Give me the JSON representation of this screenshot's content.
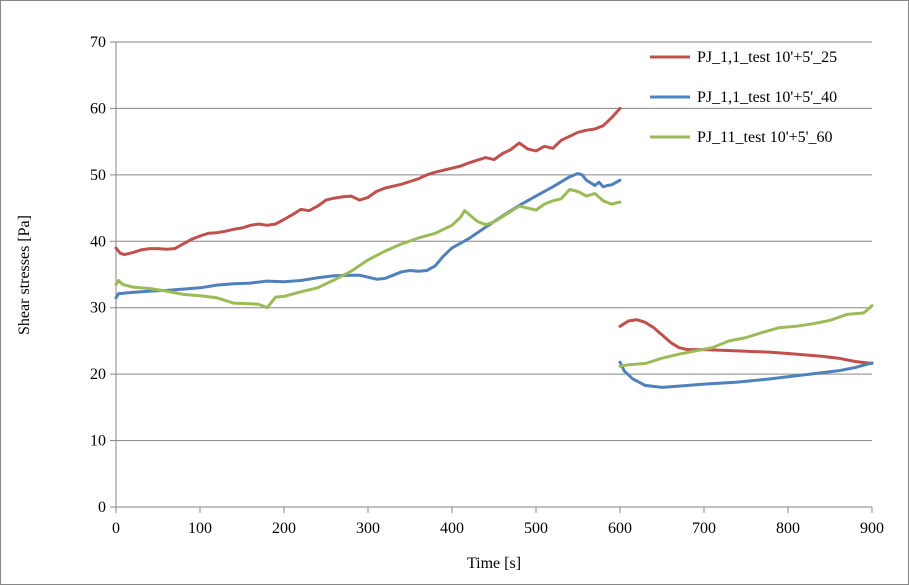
{
  "chart_data": {
    "type": "line",
    "title": "",
    "xlabel": "Time [s]",
    "ylabel": "Shear stresses [Pa]",
    "xlim": [
      0,
      900
    ],
    "ylim": [
      0,
      70
    ],
    "x_ticks": [
      0,
      100,
      200,
      300,
      400,
      500,
      600,
      700,
      800,
      900
    ],
    "y_ticks": [
      0,
      10,
      20,
      30,
      40,
      50,
      60,
      70
    ],
    "grid": "horizontal",
    "legend_position": "top-right",
    "series": [
      {
        "name": "PJ_1,1_test 10'+5'_25",
        "color": "#C0504D",
        "segments": [
          [
            [
              0,
              39.0
            ],
            [
              5,
              38.2
            ],
            [
              10,
              38.0
            ],
            [
              20,
              38.3
            ],
            [
              30,
              38.7
            ],
            [
              40,
              38.9
            ],
            [
              50,
              38.9
            ],
            [
              60,
              38.8
            ],
            [
              70,
              38.9
            ],
            [
              80,
              39.6
            ],
            [
              90,
              40.3
            ],
            [
              100,
              40.8
            ],
            [
              110,
              41.2
            ],
            [
              120,
              41.3
            ],
            [
              130,
              41.5
            ],
            [
              140,
              41.8
            ],
            [
              150,
              42.0
            ],
            [
              160,
              42.4
            ],
            [
              170,
              42.6
            ],
            [
              180,
              42.4
            ],
            [
              190,
              42.6
            ],
            [
              200,
              43.3
            ],
            [
              210,
              44.0
            ],
            [
              220,
              44.8
            ],
            [
              230,
              44.6
            ],
            [
              240,
              45.3
            ],
            [
              250,
              46.2
            ],
            [
              260,
              46.5
            ],
            [
              270,
              46.7
            ],
            [
              280,
              46.8
            ],
            [
              290,
              46.2
            ],
            [
              300,
              46.6
            ],
            [
              310,
              47.5
            ],
            [
              320,
              48.0
            ],
            [
              330,
              48.3
            ],
            [
              340,
              48.6
            ],
            [
              350,
              49.0
            ],
            [
              360,
              49.4
            ],
            [
              370,
              50.0
            ],
            [
              380,
              50.4
            ],
            [
              390,
              50.7
            ],
            [
              400,
              51.0
            ],
            [
              410,
              51.3
            ],
            [
              420,
              51.8
            ],
            [
              430,
              52.2
            ],
            [
              440,
              52.6
            ],
            [
              450,
              52.3
            ],
            [
              460,
              53.2
            ],
            [
              470,
              53.8
            ],
            [
              480,
              54.8
            ],
            [
              490,
              53.9
            ],
            [
              500,
              53.6
            ],
            [
              510,
              54.3
            ],
            [
              520,
              54.0
            ],
            [
              530,
              55.2
            ],
            [
              540,
              55.8
            ],
            [
              550,
              56.4
            ],
            [
              560,
              56.7
            ],
            [
              570,
              56.9
            ],
            [
              580,
              57.4
            ],
            [
              590,
              58.6
            ],
            [
              600,
              60.0
            ]
          ],
          [
            [
              600,
              27.2
            ],
            [
              610,
              28.0
            ],
            [
              620,
              28.2
            ],
            [
              630,
              27.8
            ],
            [
              640,
              27.0
            ],
            [
              650,
              25.9
            ],
            [
              660,
              24.8
            ],
            [
              670,
              24.0
            ],
            [
              680,
              23.7
            ],
            [
              700,
              23.7
            ],
            [
              720,
              23.6
            ],
            [
              740,
              23.5
            ],
            [
              760,
              23.4
            ],
            [
              780,
              23.3
            ],
            [
              800,
              23.1
            ],
            [
              820,
              22.9
            ],
            [
              840,
              22.7
            ],
            [
              860,
              22.4
            ],
            [
              880,
              21.9
            ],
            [
              900,
              21.6
            ]
          ]
        ]
      },
      {
        "name": "PJ_1,1_test 10'+5'_40",
        "color": "#4F81BD",
        "segments": [
          [
            [
              0,
              31.5
            ],
            [
              3,
              32.1
            ],
            [
              10,
              32.2
            ],
            [
              20,
              32.3
            ],
            [
              40,
              32.5
            ],
            [
              60,
              32.6
            ],
            [
              80,
              32.8
            ],
            [
              100,
              33.0
            ],
            [
              120,
              33.4
            ],
            [
              140,
              33.6
            ],
            [
              160,
              33.7
            ],
            [
              180,
              34.0
            ],
            [
              200,
              33.9
            ],
            [
              220,
              34.1
            ],
            [
              240,
              34.5
            ],
            [
              260,
              34.8
            ],
            [
              280,
              34.9
            ],
            [
              290,
              34.9
            ],
            [
              300,
              34.6
            ],
            [
              310,
              34.3
            ],
            [
              320,
              34.4
            ],
            [
              330,
              34.9
            ],
            [
              340,
              35.4
            ],
            [
              350,
              35.6
            ],
            [
              360,
              35.5
            ],
            [
              370,
              35.6
            ],
            [
              380,
              36.3
            ],
            [
              390,
              37.8
            ],
            [
              400,
              39.0
            ],
            [
              410,
              39.7
            ],
            [
              420,
              40.4
            ],
            [
              440,
              42.1
            ],
            [
              460,
              43.8
            ],
            [
              480,
              45.4
            ],
            [
              500,
              46.8
            ],
            [
              520,
              48.2
            ],
            [
              540,
              49.7
            ],
            [
              550,
              50.2
            ],
            [
              555,
              50.0
            ],
            [
              560,
              49.2
            ],
            [
              565,
              48.8
            ],
            [
              570,
              48.4
            ],
            [
              575,
              48.9
            ],
            [
              580,
              48.2
            ],
            [
              585,
              48.4
            ],
            [
              590,
              48.5
            ],
            [
              600,
              49.2
            ]
          ],
          [
            [
              600,
              21.8
            ],
            [
              605,
              20.5
            ],
            [
              615,
              19.3
            ],
            [
              630,
              18.3
            ],
            [
              650,
              18.0
            ],
            [
              670,
              18.2
            ],
            [
              700,
              18.5
            ],
            [
              740,
              18.8
            ],
            [
              780,
              19.3
            ],
            [
              820,
              19.9
            ],
            [
              860,
              20.5
            ],
            [
              880,
              21.0
            ],
            [
              900,
              21.7
            ]
          ]
        ]
      },
      {
        "name": "PJ_11_test 10'+5'_60",
        "color": "#9BBB59",
        "segments": [
          [
            [
              0,
              33.5
            ],
            [
              3,
              34.1
            ],
            [
              8,
              33.5
            ],
            [
              20,
              33.1
            ],
            [
              40,
              32.9
            ],
            [
              60,
              32.5
            ],
            [
              80,
              32.0
            ],
            [
              100,
              31.8
            ],
            [
              120,
              31.5
            ],
            [
              140,
              30.7
            ],
            [
              160,
              30.6
            ],
            [
              170,
              30.5
            ],
            [
              180,
              30.0
            ],
            [
              190,
              31.6
            ],
            [
              200,
              31.7
            ],
            [
              220,
              32.4
            ],
            [
              240,
              33.0
            ],
            [
              260,
              34.2
            ],
            [
              280,
              35.5
            ],
            [
              300,
              37.2
            ],
            [
              320,
              38.5
            ],
            [
              340,
              39.6
            ],
            [
              360,
              40.5
            ],
            [
              380,
              41.2
            ],
            [
              400,
              42.4
            ],
            [
              410,
              43.6
            ],
            [
              415,
              44.6
            ],
            [
              420,
              44.1
            ],
            [
              430,
              43.0
            ],
            [
              440,
              42.5
            ],
            [
              450,
              42.9
            ],
            [
              460,
              43.7
            ],
            [
              470,
              44.5
            ],
            [
              480,
              45.3
            ],
            [
              490,
              45.0
            ],
            [
              500,
              44.7
            ],
            [
              510,
              45.6
            ],
            [
              520,
              46.1
            ],
            [
              530,
              46.4
            ],
            [
              540,
              47.8
            ],
            [
              550,
              47.5
            ],
            [
              560,
              46.8
            ],
            [
              570,
              47.2
            ],
            [
              580,
              46.1
            ],
            [
              590,
              45.6
            ],
            [
              600,
              45.9
            ]
          ],
          [
            [
              600,
              21.2
            ],
            [
              610,
              21.4
            ],
            [
              630,
              21.6
            ],
            [
              650,
              22.4
            ],
            [
              670,
              23.0
            ],
            [
              690,
              23.5
            ],
            [
              710,
              24.0
            ],
            [
              730,
              25.0
            ],
            [
              750,
              25.5
            ],
            [
              770,
              26.3
            ],
            [
              790,
              27.0
            ],
            [
              810,
              27.2
            ],
            [
              830,
              27.6
            ],
            [
              850,
              28.1
            ],
            [
              870,
              29.0
            ],
            [
              890,
              29.2
            ],
            [
              900,
              30.3
            ]
          ]
        ]
      }
    ]
  }
}
